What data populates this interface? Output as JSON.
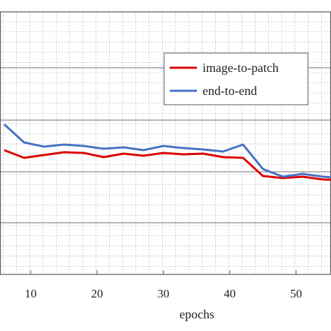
{
  "chart_data": {
    "type": "line",
    "title": "",
    "xlabel": "epochs",
    "ylabel": "",
    "xlim": [
      6,
      58
    ],
    "x_ticks": [
      10,
      20,
      30,
      40,
      50
    ],
    "grid": true,
    "legend_position": "top-right",
    "x": [
      6,
      9,
      12,
      15,
      18,
      21,
      24,
      27,
      30,
      33,
      36,
      39,
      42,
      45,
      48,
      51,
      54,
      57
    ],
    "series": [
      {
        "name": "image-to-patch",
        "color": "#dd0000",
        "values": [
          0.47,
          0.36,
          0.4,
          0.44,
          0.43,
          0.37,
          0.42,
          0.39,
          0.43,
          0.41,
          0.42,
          0.37,
          0.36,
          0.1,
          0.07,
          0.09,
          0.05,
          0.04
        ]
      },
      {
        "name": "end-to-end",
        "color": "#4472c4",
        "values": [
          0.84,
          0.58,
          0.52,
          0.55,
          0.53,
          0.49,
          0.51,
          0.47,
          0.53,
          0.5,
          0.48,
          0.45,
          0.55,
          0.2,
          0.09,
          0.13,
          0.09,
          0.07
        ]
      }
    ]
  }
}
